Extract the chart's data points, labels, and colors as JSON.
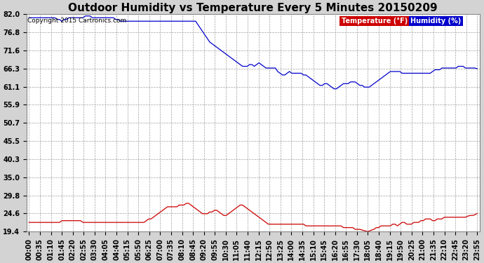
{
  "title": "Outdoor Humidity vs Temperature Every 5 Minutes 20150209",
  "copyright": "Copyright 2015 Cartronics.com",
  "legend_temp": "Temperature (°F)",
  "legend_hum": "Humidity (%)",
  "yticks": [
    19.4,
    24.6,
    29.8,
    35.0,
    40.3,
    45.5,
    50.7,
    55.9,
    61.1,
    66.3,
    71.6,
    76.8,
    82.0
  ],
  "ylim": [
    19.4,
    82.0
  ],
  "background_color": "#d3d3d3",
  "plot_bg_color": "#ffffff",
  "grid_color": "#a0a0a0",
  "temp_color": "#cc0000",
  "hum_color": "#0000cc",
  "legend_temp_bg": "#cc0000",
  "legend_hum_bg": "#0000cc",
  "title_fontsize": 11,
  "tick_fontsize": 7,
  "xtick_labels": [
    "00:00",
    "00:35",
    "01:10",
    "01:45",
    "02:20",
    "02:55",
    "03:30",
    "04:05",
    "04:40",
    "05:15",
    "05:50",
    "06:25",
    "07:00",
    "07:35",
    "08:10",
    "08:45",
    "09:20",
    "09:55",
    "10:30",
    "11:05",
    "11:40",
    "12:15",
    "12:50",
    "13:25",
    "14:00",
    "14:35",
    "15:10",
    "15:45",
    "16:20",
    "16:55",
    "17:30",
    "18:05",
    "18:40",
    "19:15",
    "19:50",
    "20:25",
    "21:00",
    "21:35",
    "22:10",
    "22:45",
    "23:20",
    "23:55"
  ],
  "humidity_data": [
    81.0,
    81.0,
    81.0,
    81.0,
    81.0,
    81.0,
    81.0,
    81.0,
    81.0,
    81.0,
    81.0,
    81.0,
    80.5,
    80.5,
    80.0,
    80.5,
    80.5,
    81.0,
    81.0,
    81.0,
    81.0,
    81.0,
    81.0,
    81.0,
    81.5,
    81.5,
    81.5,
    81.0,
    81.0,
    81.0,
    81.0,
    81.0,
    81.0,
    81.0,
    81.0,
    81.0,
    81.0,
    80.5,
    80.5,
    80.0,
    80.0,
    80.0,
    80.0,
    80.0,
    80.0,
    80.0,
    80.0,
    80.0,
    80.0,
    80.0,
    80.0,
    80.0,
    80.0,
    80.0,
    80.0,
    80.0,
    80.0,
    80.0,
    80.0,
    80.0,
    80.0,
    80.0,
    80.0,
    80.0,
    80.0,
    80.0,
    80.0,
    80.0,
    80.0,
    80.0,
    80.0,
    80.0,
    79.0,
    78.0,
    77.0,
    76.0,
    75.0,
    74.0,
    73.5,
    73.0,
    72.5,
    72.0,
    71.5,
    71.0,
    70.5,
    70.0,
    69.5,
    69.0,
    68.5,
    68.0,
    67.5,
    67.0,
    67.0,
    67.0,
    67.5,
    67.5,
    67.0,
    67.5,
    68.0,
    67.5,
    67.0,
    66.5,
    66.5,
    66.5,
    66.5,
    66.5,
    65.5,
    65.0,
    64.5,
    64.5,
    65.0,
    65.5,
    65.0,
    65.0,
    65.0,
    65.0,
    65.0,
    64.5,
    64.5,
    64.0,
    63.5,
    63.0,
    62.5,
    62.0,
    61.5,
    61.5,
    62.0,
    62.0,
    61.5,
    61.0,
    60.5,
    60.5,
    61.0,
    61.5,
    62.0,
    62.0,
    62.0,
    62.5,
    62.5,
    62.5,
    62.0,
    61.5,
    61.5,
    61.0,
    61.0,
    61.0,
    61.5,
    62.0,
    62.5,
    63.0,
    63.5,
    64.0,
    64.5,
    65.0,
    65.5,
    65.5,
    65.5,
    65.5,
    65.5,
    65.0,
    65.0,
    65.0,
    65.0,
    65.0,
    65.0,
    65.0,
    65.0,
    65.0,
    65.0,
    65.0,
    65.0,
    65.0,
    65.5,
    66.0,
    66.0,
    66.0,
    66.5,
    66.5,
    66.5,
    66.5,
    66.5,
    66.5,
    66.5,
    67.0,
    67.0,
    67.0,
    66.5,
    66.5,
    66.5,
    66.5,
    66.5,
    66.3
  ],
  "temperature_data": [
    22.0,
    22.0,
    22.0,
    22.0,
    22.0,
    22.0,
    22.0,
    22.0,
    22.0,
    22.0,
    22.0,
    22.0,
    22.0,
    22.0,
    22.5,
    22.5,
    22.5,
    22.5,
    22.5,
    22.5,
    22.5,
    22.5,
    22.5,
    22.0,
    22.0,
    22.0,
    22.0,
    22.0,
    22.0,
    22.0,
    22.0,
    22.0,
    22.0,
    22.0,
    22.0,
    22.0,
    22.0,
    22.0,
    22.0,
    22.0,
    22.0,
    22.0,
    22.0,
    22.0,
    22.0,
    22.0,
    22.0,
    22.0,
    22.0,
    22.0,
    22.5,
    23.0,
    23.0,
    23.5,
    24.0,
    24.5,
    25.0,
    25.5,
    26.0,
    26.5,
    26.5,
    26.5,
    26.5,
    26.5,
    27.0,
    27.0,
    27.0,
    27.5,
    27.5,
    27.0,
    26.5,
    26.0,
    25.5,
    25.0,
    24.5,
    24.5,
    24.5,
    25.0,
    25.0,
    25.5,
    25.5,
    25.0,
    24.5,
    24.0,
    24.0,
    24.5,
    25.0,
    25.5,
    26.0,
    26.5,
    27.0,
    27.0,
    26.5,
    26.0,
    25.5,
    25.0,
    24.5,
    24.0,
    23.5,
    23.0,
    22.5,
    22.0,
    21.5,
    21.5,
    21.5,
    21.5,
    21.5,
    21.5,
    21.5,
    21.5,
    21.5,
    21.5,
    21.5,
    21.5,
    21.5,
    21.5,
    21.5,
    21.5,
    21.0,
    21.0,
    21.0,
    21.0,
    21.0,
    21.0,
    21.0,
    21.0,
    21.0,
    21.0,
    21.0,
    21.0,
    21.0,
    21.0,
    21.0,
    21.0,
    20.5,
    20.5,
    20.5,
    20.5,
    20.5,
    20.0,
    20.0,
    20.0,
    19.8,
    19.6,
    19.4,
    19.5,
    19.8,
    20.0,
    20.5,
    20.5,
    21.0,
    21.0,
    21.0,
    21.0,
    21.0,
    21.5,
    21.5,
    21.0,
    21.5,
    22.0,
    22.0,
    21.5,
    21.5,
    21.5,
    22.0,
    22.0,
    22.0,
    22.5,
    22.5,
    23.0,
    23.0,
    23.0,
    22.5,
    22.5,
    23.0,
    23.0,
    23.0,
    23.5,
    23.5,
    23.5,
    23.5,
    23.5,
    23.5,
    23.5,
    23.5,
    23.5,
    23.5,
    23.8,
    24.0,
    24.0,
    24.2,
    24.6
  ]
}
